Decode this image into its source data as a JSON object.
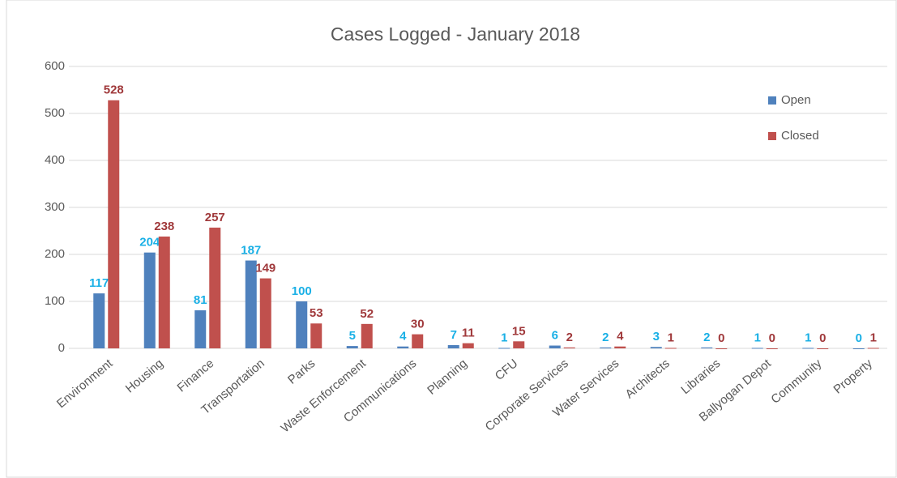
{
  "chart_data": {
    "type": "bar",
    "title": "Cases Logged - January 2018",
    "categories": [
      "Environment",
      "Housing",
      "Finance",
      "Transportation",
      "Parks",
      "Waste Enforcement",
      "Communications",
      "Planning",
      "CFU",
      "Corporate Services",
      "Water Services",
      "Architects",
      "Libraries",
      "Ballyogan Depot",
      "Community",
      "Property"
    ],
    "series": [
      {
        "name": "Open",
        "color": "#4f81bd",
        "label_color": "#1ab0e6",
        "values": [
          117,
          204,
          81,
          187,
          100,
          5,
          4,
          7,
          1,
          6,
          2,
          3,
          2,
          1,
          1,
          0
        ]
      },
      {
        "name": "Closed",
        "color": "#c0504d",
        "label_color": "#a0393b",
        "values": [
          528,
          238,
          257,
          149,
          53,
          52,
          30,
          11,
          15,
          2,
          4,
          1,
          0,
          0,
          0,
          1
        ]
      }
    ],
    "ylim": [
      0,
      600
    ],
    "yticks": [
      0,
      100,
      200,
      300,
      400,
      500,
      600
    ],
    "grid": true,
    "legend": "right"
  }
}
